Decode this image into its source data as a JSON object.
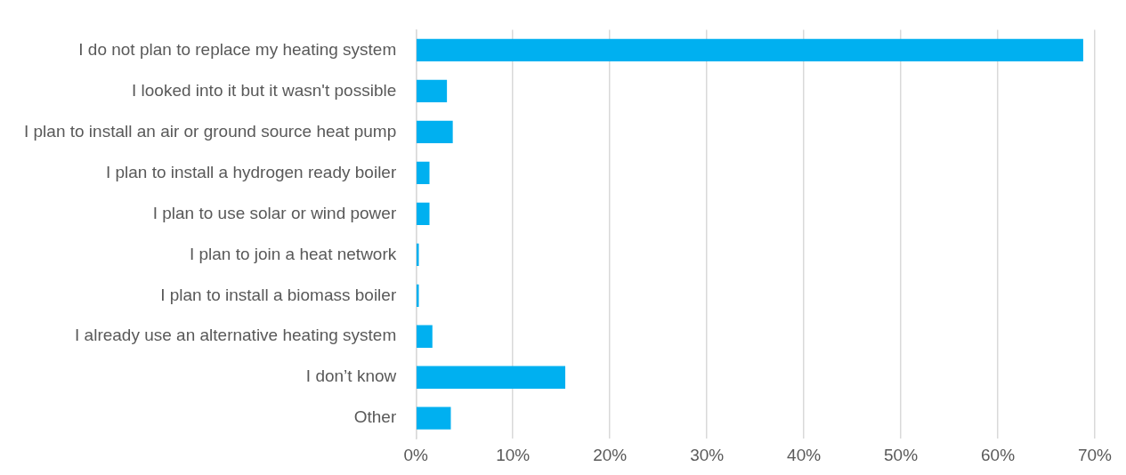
{
  "chart_data": {
    "type": "bar",
    "orientation": "horizontal",
    "categories": [
      "I do not plan to replace my heating system",
      "I looked into it but it wasn't possible",
      "I plan to install an air or ground source heat pump",
      "I plan to install a hydrogen ready boiler",
      "I plan to use solar or wind power",
      "I plan to join a heat network",
      "I plan to install a biomass boiler",
      "I already use an alternative heating system",
      "I don’t know",
      "Other"
    ],
    "values": [
      68.8,
      3.2,
      3.8,
      1.4,
      1.4,
      0.3,
      0.3,
      1.7,
      15.4,
      3.6
    ],
    "color": "#00b0f0",
    "xlim": [
      0,
      70
    ],
    "xticks": [
      {
        "value": 0,
        "label": "0%"
      },
      {
        "value": 10,
        "label": "10%"
      },
      {
        "value": 20,
        "label": "20%"
      },
      {
        "value": 30,
        "label": "30%"
      },
      {
        "value": 40,
        "label": "40%"
      },
      {
        "value": 50,
        "label": "50%"
      },
      {
        "value": 60,
        "label": "60%"
      },
      {
        "value": 70,
        "label": "70%"
      }
    ],
    "grid": "x",
    "legend": false
  }
}
